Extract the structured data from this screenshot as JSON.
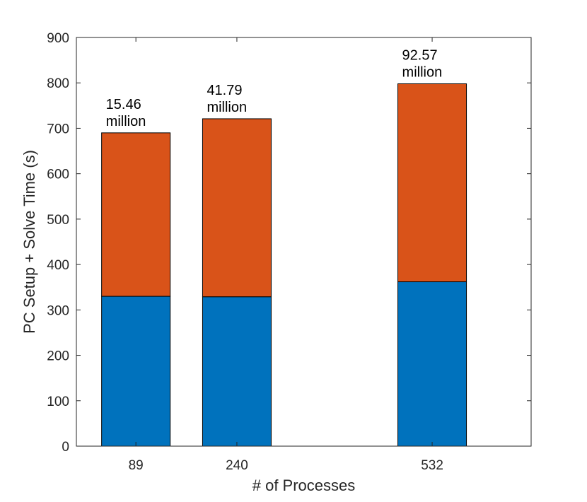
{
  "chart_data": {
    "type": "bar",
    "stacked": true,
    "categories": [
      "89",
      "240",
      "532"
    ],
    "x": [
      89,
      240,
      532
    ],
    "series": [
      {
        "values": [
          330,
          329,
          362
        ],
        "color": "#0072BD"
      },
      {
        "values": [
          360,
          392,
          436
        ],
        "color": "#D95319"
      }
    ],
    "bar_labels": [
      [
        "15.46",
        "million"
      ],
      [
        "41.79",
        "million"
      ],
      [
        "92.57",
        "million"
      ]
    ],
    "xlabel": "# of Processes",
    "ylabel": "PC Setup + Solve Time (s)",
    "ylim": [
      0,
      900
    ],
    "yticks": [
      0,
      100,
      200,
      300,
      400,
      500,
      600,
      700,
      800,
      900
    ],
    "grid": false,
    "legend": "none"
  }
}
